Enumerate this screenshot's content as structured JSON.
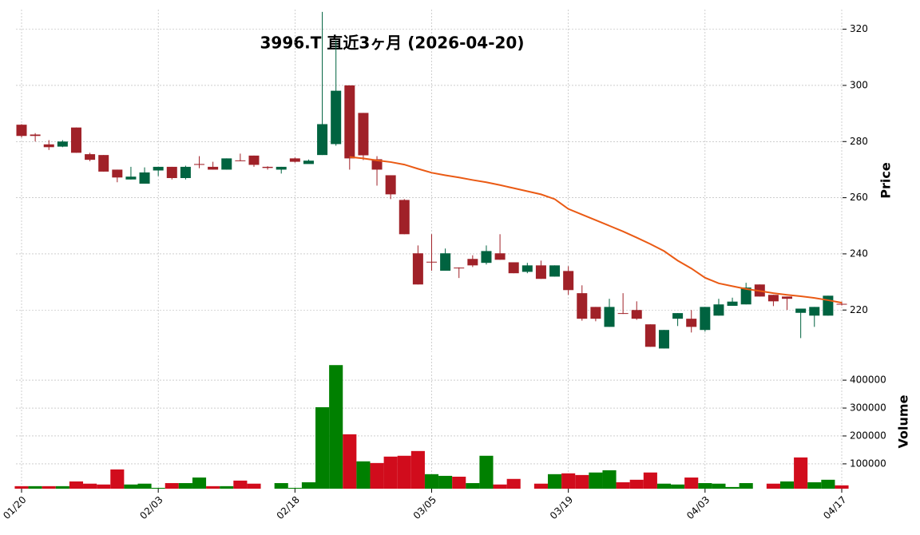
{
  "chart_data": {
    "type": "candlestick",
    "title": "3996.T 直近3ヶ月 (2026-04-20)",
    "ylabel": "Price",
    "categories": [
      "01/20",
      null,
      null,
      null,
      null,
      null,
      null,
      null,
      null,
      null,
      "02/03",
      null,
      null,
      null,
      null,
      null,
      null,
      null,
      null,
      null,
      "02/18",
      null,
      null,
      null,
      null,
      null,
      null,
      null,
      null,
      null,
      "03/05",
      null,
      null,
      null,
      null,
      null,
      null,
      null,
      null,
      null,
      "03/19",
      null,
      null,
      null,
      null,
      null,
      null,
      null,
      null,
      null,
      "04/03",
      null,
      null,
      null,
      null,
      null,
      null,
      null,
      null,
      null,
      "04/17"
    ],
    "open": [
      286,
      282.5,
      279,
      278.2,
      285,
      275.5,
      275.2,
      270,
      266.5,
      265,
      269.7,
      271,
      267,
      272,
      271,
      270,
      273.3,
      275,
      271,
      270,
      274,
      272,
      275.2,
      279.1,
      300,
      290.2,
      273.7,
      268,
      259.2,
      240.2,
      237.2,
      234,
      235.1,
      238.2,
      236.8,
      240.2,
      237,
      233.6,
      235.9,
      231.9,
      233.9,
      226,
      221.1,
      214,
      218.9,
      220,
      214.9,
      206.3,
      216.9,
      216.9,
      212.9,
      218,
      221.5,
      222,
      229.1,
      225.4,
      224.8,
      219,
      218,
      218,
      222.2
    ],
    "high": [
      286.2,
      283,
      280.5,
      280.5,
      285,
      276,
      275.2,
      270,
      271,
      270.8,
      271,
      271,
      271.4,
      274.8,
      272.8,
      274,
      275.7,
      275,
      271.2,
      271,
      274.3,
      273.6,
      326.2,
      316,
      300,
      290.2,
      274.8,
      268,
      259.5,
      243,
      247,
      241.9,
      235.2,
      239.5,
      243,
      247,
      237,
      236.8,
      237.6,
      235.9,
      235.6,
      228.8,
      221.1,
      224,
      226,
      223.1,
      214.9,
      212.9,
      218.9,
      220,
      221.1,
      224,
      224.4,
      229.7,
      229.1,
      225.4,
      224.8,
      220.5,
      221.1,
      225.1,
      223
    ],
    "low": [
      281.5,
      280,
      277,
      278,
      276,
      273,
      269.3,
      265.5,
      266.5,
      265,
      267.7,
      266.5,
      266.5,
      270.5,
      270,
      270,
      273,
      271,
      270,
      268.6,
      272.5,
      272.5,
      275.2,
      278.5,
      270,
      273.4,
      264.3,
      259.5,
      247,
      229.1,
      234,
      234,
      231.4,
      235.3,
      236.2,
      237.9,
      233.1,
      233.1,
      231.1,
      231.9,
      225.4,
      216.2,
      216,
      214,
      218.6,
      216.5,
      206.9,
      206.3,
      214.3,
      212,
      212.3,
      218,
      221.5,
      222,
      224.8,
      221.4,
      220,
      210,
      214,
      218,
      221.6
    ],
    "close": [
      282,
      282,
      278,
      280,
      276,
      273.5,
      269.3,
      267.2,
      267.5,
      269,
      271,
      267,
      271,
      271.7,
      270,
      274,
      273.1,
      271.7,
      270.6,
      271,
      272.8,
      273.2,
      286.2,
      298.1,
      274,
      275.1,
      270,
      261.2,
      247,
      229.1,
      237,
      240.2,
      235,
      235.9,
      241,
      237.9,
      233.1,
      235.9,
      231.1,
      235.9,
      227.1,
      216.9,
      216.9,
      221.1,
      218.7,
      216.9,
      206.9,
      212.9,
      218.9,
      214,
      221.1,
      222,
      223,
      228,
      224.8,
      223.1,
      224,
      220.5,
      221.1,
      225.1,
      222
    ],
    "moving_average": {
      "color": "#ea5a14",
      "values": [
        null,
        null,
        null,
        null,
        null,
        null,
        null,
        null,
        null,
        null,
        null,
        null,
        null,
        null,
        null,
        null,
        null,
        null,
        null,
        null,
        null,
        null,
        null,
        null,
        274.5,
        274,
        273.3,
        272.7,
        271.8,
        270.3,
        268.9,
        268,
        267.2,
        266.3,
        265.5,
        264.5,
        263.4,
        262.3,
        261.2,
        259.5,
        256,
        254,
        252,
        250,
        248,
        245.8,
        243.5,
        241,
        237.6,
        234.8,
        231.5,
        229.5,
        228.5,
        227.5,
        226.8,
        226,
        225.4,
        224.9,
        224.3,
        223.5,
        222.6
      ]
    },
    "up_color": "#006340",
    "down_color": "#a02128",
    "ylim": [
      205,
      327
    ],
    "yticks": [
      220,
      240,
      260,
      280,
      300,
      320
    ],
    "grid": true,
    "volume": {
      "ylabel": "Volume",
      "up_color": "#008000",
      "down_color": "#d10c1c",
      "values": [
        20000,
        20000,
        20000,
        20000,
        37000,
        29000,
        26000,
        80000,
        26000,
        29000,
        14000,
        31000,
        31000,
        51000,
        20000,
        20000,
        40000,
        29000,
        11000,
        31000,
        14000,
        34000,
        303000,
        454000,
        206000,
        109000,
        103000,
        126000,
        129000,
        146000,
        63000,
        57000,
        54000,
        31000,
        129000,
        26000,
        46000,
        11000,
        29000,
        63000,
        66000,
        60000,
        69000,
        77000,
        34000,
        43000,
        69000,
        29000,
        26000,
        51000,
        31000,
        29000,
        17000,
        31000,
        11000,
        29000,
        37000,
        123000,
        34000,
        43000,
        23000
      ],
      "ylim": [
        11000,
        489000
      ],
      "yticks": [
        100000,
        200000,
        300000,
        400000
      ]
    }
  }
}
